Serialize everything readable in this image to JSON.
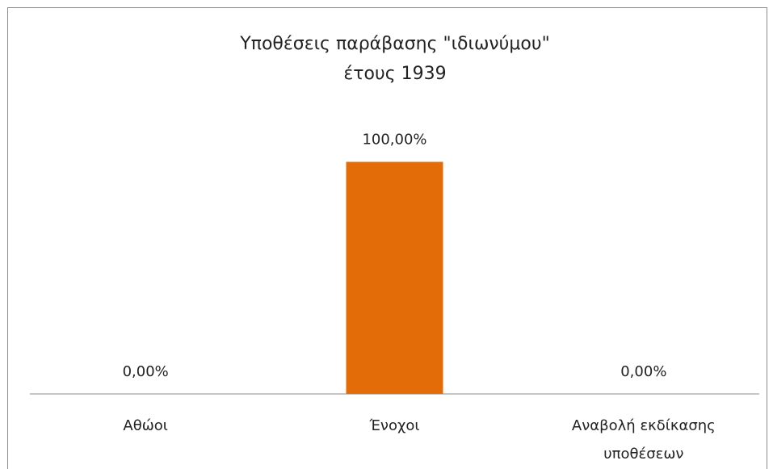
{
  "chart_data": {
    "type": "bar",
    "title": [
      "Υποθέσεις παράβασης \"ιδιωνύμου\"",
      "έτους 1939"
    ],
    "categories": [
      "Αθώοι",
      "Ένοχοι",
      "Αναβολή εκδίκασης υποθέσεων"
    ],
    "values": [
      0,
      100,
      0
    ],
    "value_labels": [
      "0,00%",
      "100,00%",
      "0,00%"
    ],
    "color": "#e36c09",
    "ylim": [
      0,
      120
    ]
  }
}
